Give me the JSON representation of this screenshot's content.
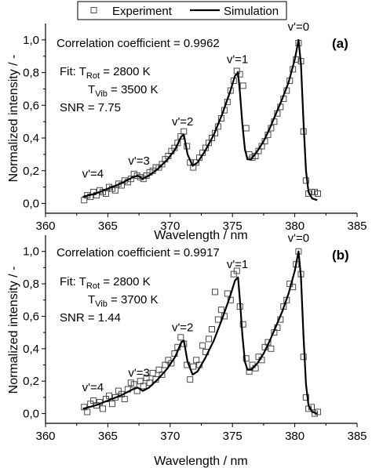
{
  "legend": {
    "experiment_label": "Experiment",
    "simulation_label": "Simulation",
    "placement": "top-center"
  },
  "colors": {
    "markers": "#4a4a4a",
    "line": "#000000",
    "background": "#ffffff"
  },
  "chart_data": [
    {
      "type": "line",
      "panel_label": "(a)",
      "xlabel": "Wavelength / nm",
      "ylabel": "Normalized intensity / -",
      "xlim": [
        360,
        385
      ],
      "ylim": [
        -0.06,
        1.1
      ],
      "x_ticks": [
        360,
        365,
        370,
        375,
        380,
        385
      ],
      "y_ticks": [
        0.0,
        0.2,
        0.4,
        0.6,
        0.8,
        1.0
      ],
      "x_tick_labels": [
        "360",
        "365",
        "370",
        "375",
        "380",
        "385"
      ],
      "y_tick_labels": [
        "0,0",
        "0,2",
        "0,4",
        "0,6",
        "0,8",
        "1,0"
      ],
      "grid": false,
      "annotations": {
        "correlation": "Correlation coefficient = 0.9962",
        "fit_prefix": "Fit: ",
        "trot_label": "T",
        "trot_sub": "Rot",
        "trot_value": " = 2800 K",
        "tvib_label": "T",
        "tvib_sub": "Vib",
        "tvib_value": " = 3500 K",
        "snr": "SNR = 7.75",
        "peaks": [
          {
            "label": "v'=0",
            "x": 380.3,
            "y": 1.0
          },
          {
            "label": "v'=1",
            "x": 375.4,
            "y": 0.8
          },
          {
            "label": "v'=2",
            "x": 371.0,
            "y": 0.42
          },
          {
            "label": "v'=3",
            "x": 367.5,
            "y": 0.18
          },
          {
            "label": "v'=4",
            "x": 363.8,
            "y": 0.1
          }
        ]
      },
      "series": [
        {
          "name": "Simulation",
          "x": [
            363.0,
            364.0,
            365.0,
            366.0,
            367.0,
            367.4,
            367.8,
            368.3,
            369.0,
            369.8,
            370.4,
            370.9,
            371.1,
            371.4,
            371.8,
            372.2,
            372.8,
            373.5,
            374.2,
            374.8,
            375.2,
            375.45,
            375.6,
            375.8,
            376.0,
            376.2,
            376.5,
            377.0,
            377.5,
            378.0,
            378.5,
            379.0,
            379.5,
            380.0,
            380.3,
            380.5,
            380.7,
            380.9,
            381.1,
            381.4,
            381.8
          ],
          "y": [
            0.04,
            0.06,
            0.09,
            0.12,
            0.16,
            0.17,
            0.15,
            0.17,
            0.21,
            0.27,
            0.33,
            0.41,
            0.42,
            0.3,
            0.23,
            0.25,
            0.32,
            0.42,
            0.55,
            0.68,
            0.78,
            0.8,
            0.68,
            0.48,
            0.33,
            0.27,
            0.27,
            0.32,
            0.38,
            0.46,
            0.55,
            0.64,
            0.74,
            0.88,
            1.0,
            0.85,
            0.5,
            0.2,
            0.07,
            0.03,
            0.02
          ]
        },
        {
          "name": "Experiment",
          "x": [
            363.1,
            363.35,
            363.6,
            363.85,
            364.1,
            364.35,
            364.6,
            364.85,
            365.1,
            365.35,
            365.6,
            365.85,
            366.1,
            366.35,
            366.6,
            366.85,
            367.1,
            367.35,
            367.6,
            367.85,
            368.1,
            368.35,
            368.6,
            368.85,
            369.1,
            369.35,
            369.6,
            369.85,
            370.1,
            370.35,
            370.6,
            370.85,
            371.1,
            371.35,
            371.6,
            371.85,
            372.1,
            372.35,
            372.6,
            372.85,
            373.1,
            373.35,
            373.6,
            373.85,
            374.1,
            374.35,
            374.6,
            374.85,
            375.1,
            375.35,
            375.6,
            375.85,
            376.1,
            376.35,
            376.6,
            376.85,
            377.1,
            377.35,
            377.6,
            377.85,
            378.1,
            378.35,
            378.6,
            378.85,
            379.1,
            379.35,
            379.6,
            379.85,
            380.1,
            380.3,
            380.5,
            380.7,
            380.9,
            381.1,
            381.35,
            381.6,
            381.85
          ],
          "y": [
            0.02,
            0.05,
            0.04,
            0.07,
            0.05,
            0.08,
            0.07,
            0.06,
            0.1,
            0.09,
            0.08,
            0.12,
            0.11,
            0.14,
            0.13,
            0.15,
            0.18,
            0.17,
            0.16,
            0.15,
            0.17,
            0.19,
            0.2,
            0.22,
            0.22,
            0.24,
            0.27,
            0.29,
            0.32,
            0.34,
            0.37,
            0.41,
            0.44,
            0.35,
            0.25,
            0.22,
            0.25,
            0.28,
            0.31,
            0.34,
            0.37,
            0.4,
            0.43,
            0.47,
            0.52,
            0.57,
            0.62,
            0.69,
            0.75,
            0.81,
            0.79,
            0.72,
            0.46,
            0.3,
            0.28,
            0.29,
            0.32,
            0.35,
            0.38,
            0.42,
            0.46,
            0.5,
            0.55,
            0.59,
            0.64,
            0.69,
            0.75,
            0.82,
            0.88,
            0.98,
            0.87,
            0.44,
            0.14,
            0.06,
            0.07,
            0.07,
            0.06
          ]
        }
      ]
    },
    {
      "type": "line",
      "panel_label": "(b)",
      "xlabel": "Wavelength / nm",
      "ylabel": "Normalized intensity / -",
      "xlim": [
        360,
        385
      ],
      "ylim": [
        -0.06,
        1.1
      ],
      "x_ticks": [
        360,
        365,
        370,
        375,
        380,
        385
      ],
      "y_ticks": [
        0.0,
        0.2,
        0.4,
        0.6,
        0.8,
        1.0
      ],
      "x_tick_labels": [
        "360",
        "365",
        "370",
        "375",
        "380",
        "385"
      ],
      "y_tick_labels": [
        "0,0",
        "0,2",
        "0,4",
        "0,6",
        "0,8",
        "1,0"
      ],
      "grid": false,
      "annotations": {
        "correlation": "Correlation coefficient = 0.9917",
        "fit_prefix": "Fit: ",
        "trot_label": "T",
        "trot_sub": "Rot",
        "trot_value": " = 2800 K",
        "tvib_label": "T",
        "tvib_sub": "Vib",
        "tvib_value": " = 3700 K",
        "snr": "SNR = 1.44",
        "peaks": [
          {
            "label": "v'=0",
            "x": 380.3,
            "y": 1.0
          },
          {
            "label": "v'=1",
            "x": 375.4,
            "y": 0.84
          },
          {
            "label": "v'=2",
            "x": 371.0,
            "y": 0.45
          },
          {
            "label": "v'=3",
            "x": 367.5,
            "y": 0.17
          },
          {
            "label": "v'=4",
            "x": 363.8,
            "y": 0.08
          }
        ]
      },
      "series": [
        {
          "name": "Simulation",
          "x": [
            363.0,
            364.0,
            365.0,
            366.0,
            367.0,
            367.4,
            367.8,
            368.3,
            369.0,
            369.8,
            370.4,
            370.9,
            371.1,
            371.4,
            371.8,
            372.2,
            372.8,
            373.5,
            374.2,
            374.8,
            375.2,
            375.45,
            375.6,
            375.8,
            376.0,
            376.2,
            376.5,
            377.0,
            377.5,
            378.0,
            378.5,
            379.0,
            379.5,
            380.0,
            380.3,
            380.5,
            380.7,
            380.9,
            381.1,
            381.4,
            381.8
          ],
          "y": [
            0.03,
            0.05,
            0.08,
            0.11,
            0.15,
            0.16,
            0.14,
            0.16,
            0.21,
            0.28,
            0.35,
            0.44,
            0.45,
            0.32,
            0.24,
            0.26,
            0.34,
            0.45,
            0.59,
            0.72,
            0.82,
            0.84,
            0.7,
            0.48,
            0.32,
            0.27,
            0.27,
            0.31,
            0.37,
            0.45,
            0.54,
            0.63,
            0.74,
            0.88,
            1.0,
            0.84,
            0.48,
            0.18,
            0.05,
            0.01,
            0.0
          ]
        },
        {
          "name": "Experiment",
          "x": [
            363.1,
            363.35,
            363.6,
            363.85,
            364.1,
            364.35,
            364.6,
            364.85,
            365.1,
            365.35,
            365.6,
            365.85,
            366.1,
            366.35,
            366.6,
            366.85,
            367.1,
            367.35,
            367.6,
            367.85,
            368.1,
            368.35,
            368.6,
            368.85,
            369.1,
            369.35,
            369.6,
            369.85,
            370.1,
            370.35,
            370.6,
            370.85,
            371.1,
            371.35,
            371.6,
            371.85,
            372.1,
            372.35,
            372.6,
            372.85,
            373.1,
            373.35,
            373.6,
            373.85,
            374.1,
            374.35,
            374.6,
            374.85,
            375.1,
            375.35,
            375.6,
            375.85,
            376.1,
            376.35,
            376.6,
            376.85,
            377.1,
            377.35,
            377.6,
            377.85,
            378.1,
            378.35,
            378.6,
            378.85,
            379.1,
            379.35,
            379.6,
            379.85,
            380.1,
            380.3,
            380.5,
            380.7,
            380.9,
            381.1,
            381.35,
            381.6,
            381.85
          ],
          "y": [
            0.04,
            0.01,
            0.06,
            0.08,
            0.05,
            0.07,
            0.03,
            0.09,
            0.11,
            0.06,
            0.1,
            0.14,
            0.12,
            0.09,
            0.15,
            0.19,
            0.18,
            0.14,
            0.2,
            0.17,
            0.22,
            0.19,
            0.25,
            0.21,
            0.27,
            0.24,
            0.3,
            0.33,
            0.31,
            0.37,
            0.41,
            0.47,
            0.43,
            0.3,
            0.21,
            0.29,
            0.33,
            0.3,
            0.42,
            0.38,
            0.46,
            0.52,
            0.75,
            0.58,
            0.64,
            0.6,
            0.74,
            0.7,
            0.86,
            0.88,
            0.66,
            0.55,
            0.34,
            0.26,
            0.3,
            0.28,
            0.35,
            0.33,
            0.41,
            0.44,
            0.4,
            0.5,
            0.53,
            0.58,
            0.66,
            0.7,
            0.8,
            0.78,
            0.92,
            1.0,
            0.86,
            0.35,
            0.1,
            0.03,
            0.04,
            0.0,
            0.01
          ]
        }
      ]
    }
  ]
}
